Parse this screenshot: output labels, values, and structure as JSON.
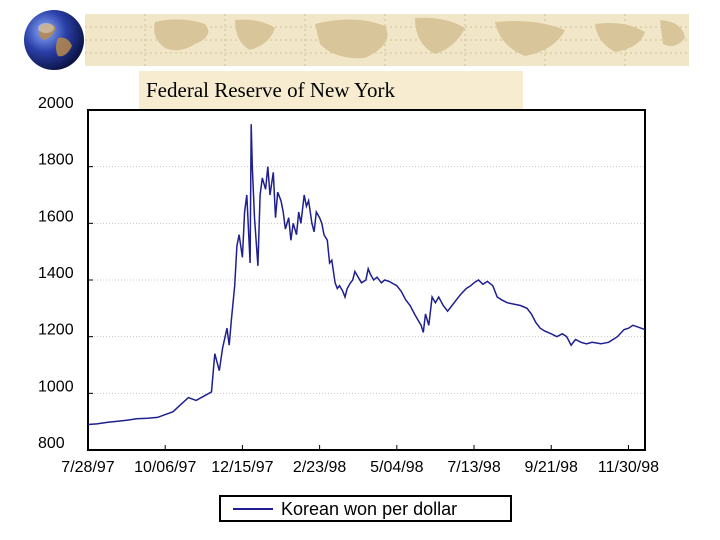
{
  "banner": {
    "map_icon": "world-map-decoration",
    "globe_icon": "globe-icon"
  },
  "source_label": "Federal Reserve of New York",
  "chart_data": {
    "type": "line",
    "title": "",
    "xlabel": "",
    "ylabel": "",
    "ylim": [
      800,
      2000
    ],
    "yticks": [
      800,
      1000,
      1200,
      1400,
      1600,
      1800,
      2000
    ],
    "xticks": [
      "7/28/97",
      "10/06/97",
      "12/15/97",
      "2/23/98",
      "5/04/98",
      "7/13/98",
      "9/21/98",
      "11/30/98"
    ],
    "x_domain": [
      "7/28/97",
      "12/15/98"
    ],
    "grid": true,
    "legend_position": "bottom-center",
    "color": "#1f1f8f",
    "series": [
      {
        "name": "Korean won per dollar",
        "points": [
          [
            "7/28/97",
            890
          ],
          [
            "8/05/97",
            892
          ],
          [
            "8/15/97",
            898
          ],
          [
            "8/25/97",
            902
          ],
          [
            "9/01/97",
            905
          ],
          [
            "9/10/97",
            910
          ],
          [
            "9/20/97",
            912
          ],
          [
            "9/29/97",
            915
          ],
          [
            "10/06/97",
            925
          ],
          [
            "10/13/97",
            935
          ],
          [
            "10/20/97",
            960
          ],
          [
            "10/27/97",
            985
          ],
          [
            "11/03/97",
            975
          ],
          [
            "11/10/97",
            990
          ],
          [
            "11/17/97",
            1005
          ],
          [
            "11/20/97",
            1140
          ],
          [
            "11/24/97",
            1080
          ],
          [
            "11/27/97",
            1160
          ],
          [
            "12/01/97",
            1230
          ],
          [
            "12/03/97",
            1170
          ],
          [
            "12/05/97",
            1260
          ],
          [
            "12/08/97",
            1380
          ],
          [
            "12/10/97",
            1520
          ],
          [
            "12/12/97",
            1560
          ],
          [
            "12/15/97",
            1480
          ],
          [
            "12/17/97",
            1640
          ],
          [
            "12/19/97",
            1700
          ],
          [
            "12/22/97",
            1460
          ],
          [
            "12/23/97",
            1950
          ],
          [
            "12/24/97",
            1800
          ],
          [
            "12/26/97",
            1620
          ],
          [
            "12/29/97",
            1450
          ],
          [
            "12/31/97",
            1700
          ],
          [
            "1/02/98",
            1760
          ],
          [
            "1/05/98",
            1720
          ],
          [
            "1/07/98",
            1800
          ],
          [
            "1/09/98",
            1700
          ],
          [
            "1/12/98",
            1780
          ],
          [
            "1/14/98",
            1620
          ],
          [
            "1/16/98",
            1710
          ],
          [
            "1/19/98",
            1680
          ],
          [
            "1/21/98",
            1640
          ],
          [
            "1/23/98",
            1580
          ],
          [
            "1/26/98",
            1620
          ],
          [
            "1/28/98",
            1540
          ],
          [
            "1/30/98",
            1600
          ],
          [
            "2/02/98",
            1560
          ],
          [
            "2/04/98",
            1640
          ],
          [
            "2/06/98",
            1600
          ],
          [
            "2/09/98",
            1700
          ],
          [
            "2/11/98",
            1660
          ],
          [
            "2/13/98",
            1680
          ],
          [
            "2/16/98",
            1600
          ],
          [
            "2/18/98",
            1570
          ],
          [
            "2/20/98",
            1640
          ],
          [
            "2/23/98",
            1620
          ],
          [
            "2/25/98",
            1600
          ],
          [
            "2/27/98",
            1560
          ],
          [
            "3/02/98",
            1540
          ],
          [
            "3/04/98",
            1460
          ],
          [
            "3/06/98",
            1470
          ],
          [
            "3/09/98",
            1390
          ],
          [
            "3/11/98",
            1370
          ],
          [
            "3/13/98",
            1380
          ],
          [
            "3/16/98",
            1360
          ],
          [
            "3/18/98",
            1340
          ],
          [
            "3/20/98",
            1370
          ],
          [
            "3/23/98",
            1390
          ],
          [
            "3/25/98",
            1400
          ],
          [
            "3/27/98",
            1430
          ],
          [
            "3/30/98",
            1410
          ],
          [
            "4/02/98",
            1390
          ],
          [
            "4/06/98",
            1400
          ],
          [
            "4/08/98",
            1440
          ],
          [
            "4/10/98",
            1420
          ],
          [
            "4/13/98",
            1400
          ],
          [
            "4/16/98",
            1410
          ],
          [
            "4/20/98",
            1390
          ],
          [
            "4/23/98",
            1400
          ],
          [
            "4/27/98",
            1395
          ],
          [
            "5/04/98",
            1380
          ],
          [
            "5/08/98",
            1360
          ],
          [
            "5/12/98",
            1330
          ],
          [
            "5/16/98",
            1310
          ],
          [
            "5/20/98",
            1280
          ],
          [
            "5/23/98",
            1260
          ],
          [
            "5/26/98",
            1240
          ],
          [
            "5/28/98",
            1215
          ],
          [
            "5/30/98",
            1280
          ],
          [
            "6/02/98",
            1240
          ],
          [
            "6/05/98",
            1340
          ],
          [
            "6/08/98",
            1320
          ],
          [
            "6/11/98",
            1340
          ],
          [
            "6/15/98",
            1310
          ],
          [
            "6/19/98",
            1290
          ],
          [
            "6/23/98",
            1310
          ],
          [
            "6/27/98",
            1330
          ],
          [
            "7/01/98",
            1350
          ],
          [
            "7/06/98",
            1370
          ],
          [
            "7/10/98",
            1380
          ],
          [
            "7/13/98",
            1390
          ],
          [
            "7/17/98",
            1400
          ],
          [
            "7/21/98",
            1385
          ],
          [
            "7/25/98",
            1395
          ],
          [
            "7/30/98",
            1380
          ],
          [
            "8/03/98",
            1340
          ],
          [
            "8/07/98",
            1330
          ],
          [
            "8/12/98",
            1320
          ],
          [
            "8/18/98",
            1315
          ],
          [
            "8/24/98",
            1310
          ],
          [
            "8/30/98",
            1300
          ],
          [
            "9/03/98",
            1280
          ],
          [
            "9/07/98",
            1250
          ],
          [
            "9/11/98",
            1230
          ],
          [
            "9/15/98",
            1220
          ],
          [
            "9/21/98",
            1210
          ],
          [
            "9/26/98",
            1200
          ],
          [
            "10/01/98",
            1210
          ],
          [
            "10/05/98",
            1200
          ],
          [
            "10/09/98",
            1170
          ],
          [
            "10/13/98",
            1190
          ],
          [
            "10/18/98",
            1180
          ],
          [
            "10/23/98",
            1175
          ],
          [
            "10/28/98",
            1180
          ],
          [
            "11/05/98",
            1175
          ],
          [
            "11/12/98",
            1180
          ],
          [
            "11/20/98",
            1200
          ],
          [
            "11/26/98",
            1225
          ],
          [
            "11/30/98",
            1230
          ],
          [
            "12/04/98",
            1240
          ],
          [
            "12/08/98",
            1235
          ],
          [
            "12/15/98",
            1225
          ]
        ]
      }
    ]
  }
}
